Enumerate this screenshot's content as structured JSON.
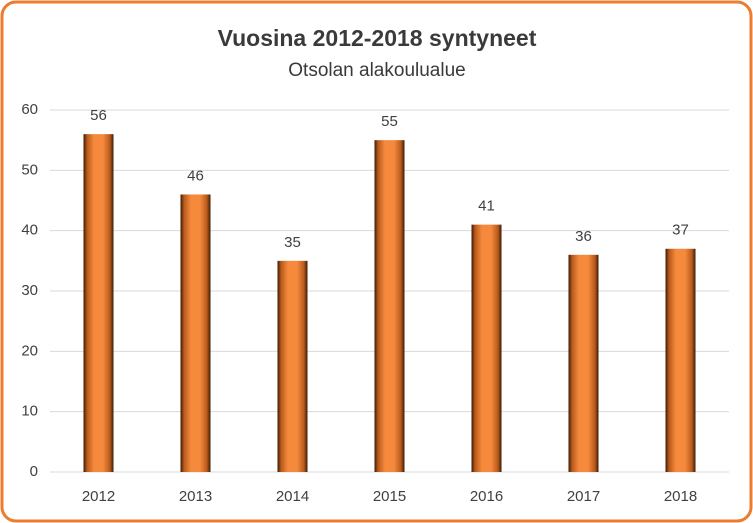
{
  "chart_data": {
    "type": "bar",
    "title": "Vuosina 2012-2018 syntyneet",
    "subtitle": "Otsolan alakoulualue",
    "categories": [
      "2012",
      "2013",
      "2014",
      "2015",
      "2016",
      "2017",
      "2018"
    ],
    "values": [
      56,
      46,
      35,
      55,
      41,
      36,
      37
    ],
    "color": "#f58a3c",
    "ylim": [
      0,
      60
    ],
    "yticks": [
      0,
      10,
      20,
      30,
      40,
      50,
      60
    ],
    "grid": true
  }
}
